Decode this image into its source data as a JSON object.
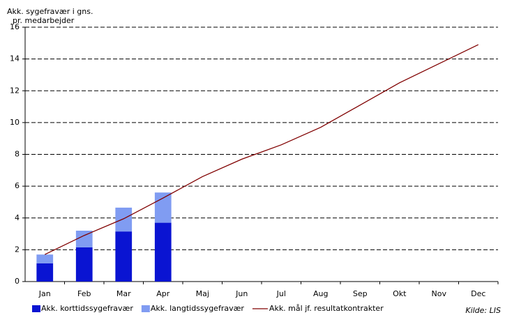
{
  "chart_data": {
    "type": "bar",
    "ylabel": [
      "Akk. sygefravær i gns.",
      "pr. medarbejder"
    ],
    "source": "Kilde: LIS",
    "categories": [
      "Jan",
      "Feb",
      "Mar",
      "Apr",
      "Maj",
      "Jun",
      "Jul",
      "Aug",
      "Sep",
      "Okt",
      "Nov",
      "Dec"
    ],
    "series": [
      {
        "name": "Akk. korttidssygefravær",
        "type": "bar",
        "color": "#0a14d2",
        "values": [
          1.15,
          2.15,
          3.15,
          3.7,
          null,
          null,
          null,
          null,
          null,
          null,
          null,
          null
        ]
      },
      {
        "name": "Akk. langtidssygefravær",
        "type": "bar",
        "color": "#809cf2",
        "values": [
          0.55,
          1.05,
          1.5,
          1.9,
          null,
          null,
          null,
          null,
          null,
          null,
          null,
          null
        ]
      },
      {
        "name": "Akk. mål jf. resultatkontrakter",
        "type": "line",
        "color": "#800000",
        "values": [
          1.7,
          2.9,
          3.95,
          5.25,
          6.6,
          7.7,
          8.6,
          9.7,
          11.1,
          12.5,
          13.7,
          14.9
        ]
      }
    ],
    "stacked": true,
    "ylim": [
      0,
      16
    ],
    "yticks": [
      0,
      2,
      4,
      6,
      8,
      10,
      12,
      14,
      16
    ],
    "grid": true
  }
}
